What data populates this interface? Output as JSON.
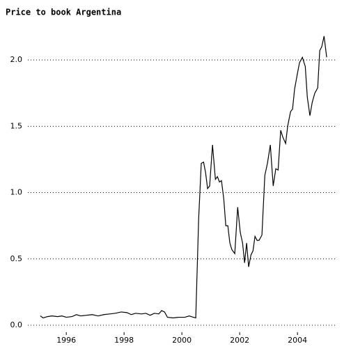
{
  "chart_data": {
    "type": "line",
    "title": "Price to book Argentina",
    "x": [
      1995.1,
      1995.2,
      1995.35,
      1995.5,
      1995.7,
      1995.85,
      1996.0,
      1996.2,
      1996.35,
      1996.5,
      1996.7,
      1996.9,
      1997.1,
      1997.3,
      1997.5,
      1997.7,
      1997.9,
      1998.1,
      1998.25,
      1998.4,
      1998.6,
      1998.75,
      1998.9,
      1999.05,
      1999.2,
      1999.3,
      1999.4,
      1999.5,
      1999.7,
      1999.9,
      2000.1,
      2000.25,
      2000.4,
      2000.48,
      2000.58,
      2000.67,
      2000.75,
      2000.82,
      2000.89,
      2000.96,
      2001.06,
      2001.16,
      2001.23,
      2001.3,
      2001.37,
      2001.45,
      2001.52,
      2001.59,
      2001.66,
      2001.73,
      2001.83,
      2001.93,
      2002.02,
      2002.1,
      2002.17,
      2002.24,
      2002.31,
      2002.39,
      2002.46,
      2002.53,
      2002.6,
      2002.67,
      2002.77,
      2002.87,
      2002.96,
      2003.06,
      2003.16,
      2003.25,
      2003.33,
      2003.42,
      2003.49,
      2003.59,
      2003.66,
      2003.76,
      2003.83,
      2003.9,
      2004.0,
      2004.07,
      2004.17,
      2004.27,
      2004.34,
      2004.43,
      2004.51,
      2004.6,
      2004.7,
      2004.77,
      2004.84,
      2004.92,
      2005.01
    ],
    "series": [
      {
        "name": "Price to book",
        "color": "#000000",
        "values": [
          0.07,
          0.055,
          0.065,
          0.07,
          0.065,
          0.07,
          0.06,
          0.065,
          0.08,
          0.07,
          0.075,
          0.08,
          0.07,
          0.08,
          0.085,
          0.09,
          0.1,
          0.095,
          0.08,
          0.09,
          0.085,
          0.09,
          0.075,
          0.09,
          0.085,
          0.11,
          0.1,
          0.06,
          0.055,
          0.06,
          0.06,
          0.07,
          0.06,
          0.055,
          0.8,
          1.22,
          1.23,
          1.15,
          1.03,
          1.05,
          1.36,
          1.1,
          1.12,
          1.08,
          1.09,
          0.95,
          0.75,
          0.75,
          0.62,
          0.57,
          0.54,
          0.89,
          0.7,
          0.62,
          0.47,
          0.62,
          0.44,
          0.53,
          0.56,
          0.67,
          0.64,
          0.64,
          0.68,
          1.13,
          1.22,
          1.36,
          1.05,
          1.18,
          1.17,
          1.47,
          1.42,
          1.37,
          1.5,
          1.61,
          1.63,
          1.78,
          1.9,
          1.98,
          2.02,
          1.95,
          1.72,
          1.58,
          1.68,
          1.75,
          1.79,
          2.07,
          2.1,
          2.18,
          2.02
        ]
      }
    ],
    "xlim": [
      1994.67,
      2005.37
    ],
    "xticks": [
      1996,
      1998,
      2000,
      2002,
      2004
    ],
    "ylim": [
      -0.05,
      2.25
    ],
    "yticks": [
      {
        "value": 0,
        "label": "0.0"
      },
      {
        "value": 0.5,
        "label": "0.5"
      },
      {
        "value": 1,
        "label": "1.0"
      },
      {
        "value": 1.5,
        "label": "1.5"
      },
      {
        "value": 2,
        "label": "2.0"
      }
    ],
    "grid": true
  }
}
